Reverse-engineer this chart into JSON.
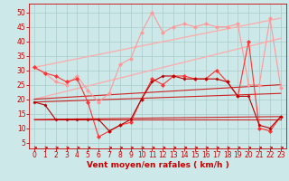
{
  "xlabel": "Vent moyen/en rafales ( km/h )",
  "xticks": [
    0,
    1,
    2,
    3,
    4,
    5,
    6,
    7,
    8,
    9,
    10,
    11,
    12,
    13,
    14,
    15,
    16,
    17,
    18,
    19,
    20,
    21,
    22,
    23
  ],
  "yticks": [
    5,
    10,
    15,
    20,
    25,
    30,
    35,
    40,
    45,
    50
  ],
  "ylim": [
    3,
    53
  ],
  "xlim": [
    -0.5,
    23.5
  ],
  "bg_color": "#cce8e8",
  "grid_color": "#aacccc",
  "trend_upper1": {
    "x": [
      0,
      23
    ],
    "y": [
      31,
      48
    ],
    "color": "#ffaaaa",
    "lw": 0.9
  },
  "trend_upper2": {
    "x": [
      0,
      23
    ],
    "y": [
      20,
      41
    ],
    "color": "#ffaaaa",
    "lw": 0.9
  },
  "trend_lower1": {
    "x": [
      0,
      23
    ],
    "y": [
      20,
      25
    ],
    "color": "#cc2222",
    "lw": 0.8
  },
  "trend_lower2": {
    "x": [
      0,
      23
    ],
    "y": [
      19,
      22
    ],
    "color": "#cc2222",
    "lw": 0.8
  },
  "trend_lower3": {
    "x": [
      0,
      23
    ],
    "y": [
      13,
      14
    ],
    "color": "#cc2222",
    "lw": 0.8
  },
  "trend_lower4": {
    "x": [
      0,
      23
    ],
    "y": [
      13,
      13
    ],
    "color": "#cc2222",
    "lw": 0.8
  },
  "line_pink": {
    "x": [
      0,
      1,
      2,
      3,
      4,
      5,
      6,
      7,
      8,
      9,
      10,
      11,
      12,
      13,
      14,
      15,
      16,
      17,
      18,
      19,
      20,
      21,
      22,
      23
    ],
    "y": [
      31,
      29,
      26,
      25,
      28,
      23,
      19,
      22,
      32,
      34,
      43,
      50,
      43,
      45,
      46,
      45,
      46,
      45,
      45,
      46,
      25,
      25,
      48,
      24
    ],
    "color": "#ff9999",
    "marker": "D",
    "ms": 2.0,
    "lw": 0.8
  },
  "line_mid": {
    "x": [
      0,
      1,
      2,
      3,
      4,
      5,
      6,
      7,
      8,
      9,
      10,
      11,
      12,
      13,
      14,
      15,
      16,
      17,
      18,
      19,
      20,
      21,
      22,
      23
    ],
    "y": [
      31,
      29,
      28,
      26,
      27,
      19,
      7,
      9,
      11,
      12,
      20,
      27,
      25,
      28,
      28,
      27,
      27,
      30,
      26,
      21,
      40,
      10,
      9,
      14
    ],
    "color": "#ff3333",
    "marker": "D",
    "ms": 2.0,
    "lw": 0.8
  },
  "line_dark": {
    "x": [
      0,
      1,
      2,
      3,
      4,
      5,
      6,
      7,
      8,
      9,
      10,
      11,
      12,
      13,
      14,
      15,
      16,
      17,
      18,
      19,
      20,
      21,
      22,
      23
    ],
    "y": [
      19,
      18,
      13,
      13,
      13,
      13,
      13,
      9,
      11,
      13,
      20,
      26,
      28,
      28,
      27,
      27,
      27,
      27,
      26,
      21,
      21,
      11,
      10,
      14
    ],
    "color": "#bb0000",
    "marker": "D",
    "ms": 1.5,
    "lw": 0.8
  },
  "arrow_color": "#cc0000",
  "tick_color": "#cc0000",
  "label_color": "#cc0000",
  "tick_fontsize": 5.5,
  "xlabel_fontsize": 6.5
}
